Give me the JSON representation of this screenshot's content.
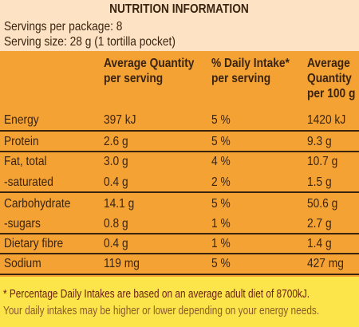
{
  "header": {
    "title": "NUTRITION INFORMATION",
    "servings": "Servings per package: 8",
    "serving_size": "Serving size: 28 g (1 tortilla pocket)"
  },
  "table": {
    "columns": [
      "Average Quantity per serving",
      "% Daily Intake* per serving",
      "Average Quantity per 100 g"
    ],
    "rows": [
      [
        "Energy",
        "397 kJ",
        "5 %",
        "1420 kJ"
      ],
      [
        "Protein",
        "2.6 g",
        "5 %",
        "9.3 g"
      ],
      [
        "Fat, total",
        "3.0 g",
        "4 %",
        "10.7 g"
      ],
      [
        "-saturated",
        "0.4 g",
        "2 %",
        "1.5 g"
      ],
      [
        "Carbohydrate",
        "14.1 g",
        "5 %",
        "50.6 g"
      ],
      [
        "-sugars",
        "0.8 g",
        "1 %",
        "2.7 g"
      ],
      [
        "Dietary fibre",
        "0.4 g",
        "1 %",
        "1.4 g"
      ],
      [
        "Sodium",
        "119 mg",
        "5 %",
        "427 mg"
      ]
    ]
  },
  "footer": {
    "line1": "* Percentage Daily Intakes are based on an average adult diet of 8700kJ.",
    "line2": "Your daily intakes may be higher or lower depending on your energy needs."
  }
}
